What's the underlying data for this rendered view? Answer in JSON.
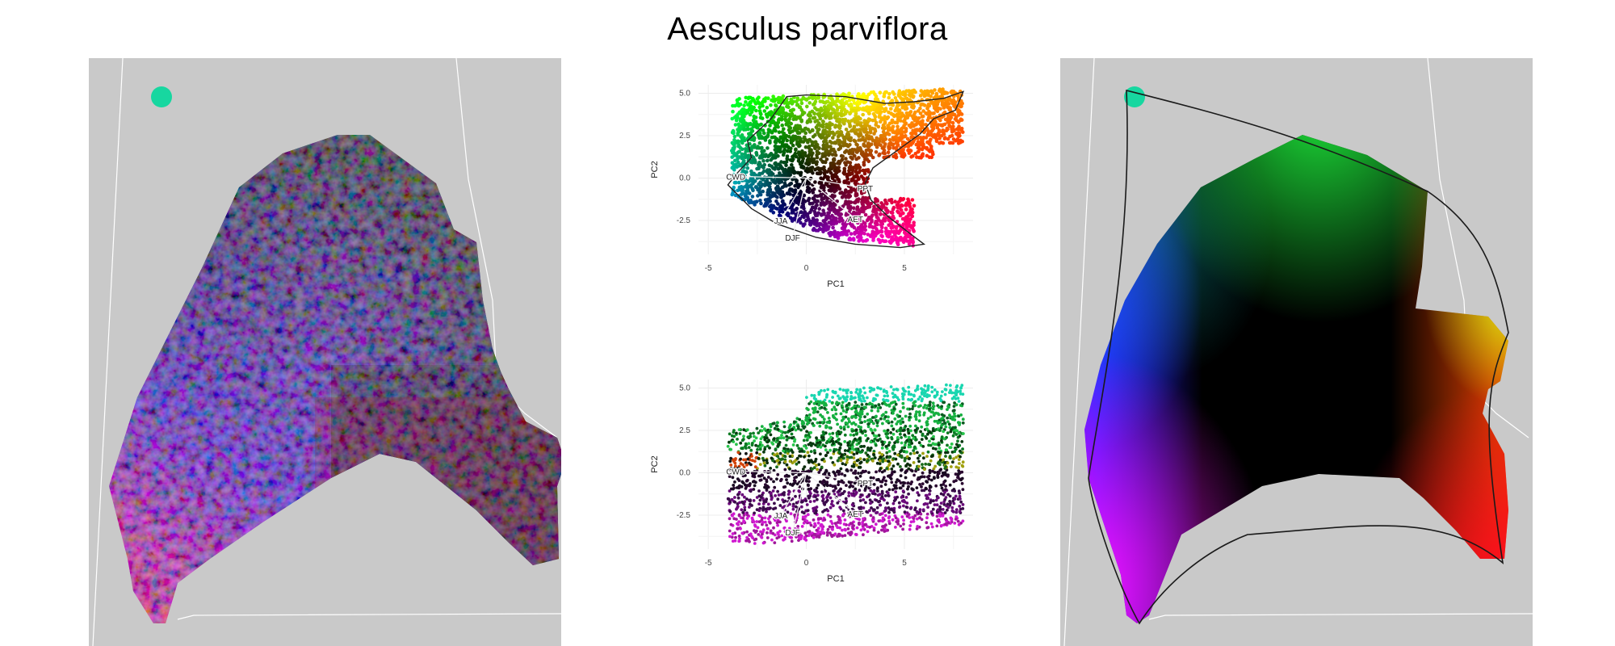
{
  "title": "Aesculus parviflora",
  "colors": {
    "map_background": "#c9c9c9",
    "border": "#ffffff",
    "hull": "#222222",
    "grid": "#ececec"
  },
  "chart_data": [
    {
      "type": "scatter",
      "panel": "pca-top",
      "xlabel": "PC1",
      "ylabel": "PC2",
      "xlim": [
        -5.5,
        8.5
      ],
      "ylim": [
        -4.5,
        5.5
      ],
      "xticks": [
        -5,
        0,
        5
      ],
      "yticks": [
        5.0,
        2.5,
        0.0,
        -2.5
      ],
      "ytick_labels": [
        "5.0",
        "2.5",
        "0.0",
        "-2.5"
      ],
      "grid": true,
      "hull_outline": true,
      "vectors": [
        {
          "label": "CWD",
          "x": -3.6,
          "y": 0.1
        },
        {
          "label": "PPT",
          "x": 3.0,
          "y": -0.6
        },
        {
          "label": "AET",
          "x": 2.5,
          "y": -2.4
        },
        {
          "label": "JJA",
          "x": -1.3,
          "y": -2.5
        },
        {
          "label": "DJF",
          "x": -0.7,
          "y": -3.5
        }
      ]
    },
    {
      "type": "scatter",
      "panel": "pca-bottom",
      "xlabel": "PC1",
      "ylabel": "PC2",
      "xlim": [
        -5.5,
        8.5
      ],
      "ylim": [
        -4.5,
        5.5
      ],
      "xticks": [
        -5,
        0,
        5
      ],
      "yticks": [
        5.0,
        2.5,
        0.0,
        -2.5
      ],
      "ytick_labels": [
        "5.0",
        "2.5",
        "0.0",
        "-2.5"
      ],
      "grid": true,
      "hull_outline": false,
      "vectors": [
        {
          "label": "CWD",
          "x": -3.6,
          "y": 0.1
        },
        {
          "label": "PPT",
          "x": 3.0,
          "y": -0.6
        },
        {
          "label": "AET",
          "x": 2.5,
          "y": -2.4
        },
        {
          "label": "JJA",
          "x": -1.3,
          "y": -2.5
        },
        {
          "label": "DJF",
          "x": -0.7,
          "y": -3.5
        }
      ]
    }
  ]
}
